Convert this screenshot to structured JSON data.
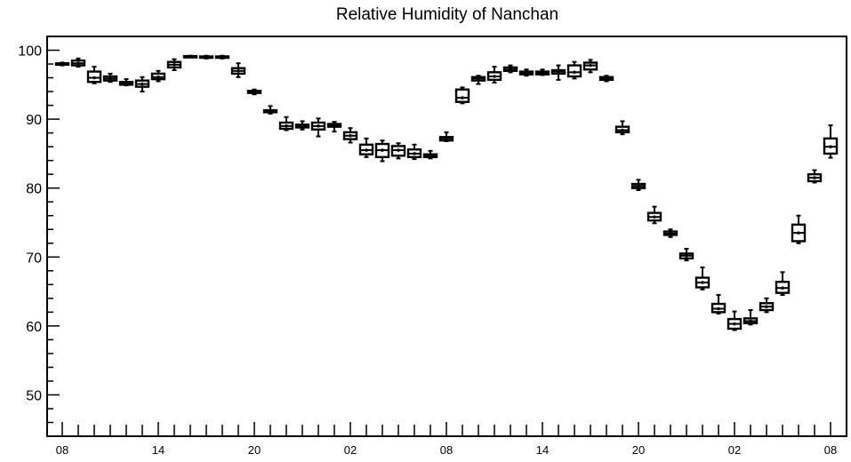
{
  "chart_data": {
    "type": "box",
    "title": "Relative Humidity of Nanchan",
    "xlabel": "",
    "ylabel": "",
    "ylim": [
      44,
      102
    ],
    "y_ticks": [
      50,
      60,
      70,
      80,
      90,
      100
    ],
    "x_ticks": [
      {
        "hour_index": 0,
        "label": "08"
      },
      {
        "hour_index": 6,
        "label": "14"
      },
      {
        "hour_index": 12,
        "label": "20"
      },
      {
        "hour_index": 18,
        "label": "02"
      },
      {
        "hour_index": 24,
        "label": "08"
      },
      {
        "hour_index": 30,
        "label": "14"
      },
      {
        "hour_index": 36,
        "label": "20"
      },
      {
        "hour_index": 42,
        "label": "02"
      },
      {
        "hour_index": 48,
        "label": "08"
      }
    ],
    "boxes": [
      {
        "hour_index": 0,
        "min": 97.8,
        "q1": 97.9,
        "median": 98.0,
        "q3": 98.1,
        "max": 98.2
      },
      {
        "hour_index": 1,
        "min": 97.6,
        "q1": 97.8,
        "median": 98.1,
        "q3": 98.5,
        "max": 98.8
      },
      {
        "hour_index": 2,
        "min": 95.2,
        "q1": 95.4,
        "median": 96.0,
        "q3": 96.9,
        "max": 97.6
      },
      {
        "hour_index": 3,
        "min": 95.4,
        "q1": 95.6,
        "median": 95.9,
        "q3": 96.2,
        "max": 96.6
      },
      {
        "hour_index": 4,
        "min": 94.9,
        "q1": 95.0,
        "median": 95.2,
        "q3": 95.4,
        "max": 95.8
      },
      {
        "hour_index": 5,
        "min": 94.0,
        "q1": 94.7,
        "median": 95.1,
        "q3": 95.6,
        "max": 96.1
      },
      {
        "hour_index": 6,
        "min": 95.5,
        "q1": 95.8,
        "median": 96.1,
        "q3": 96.6,
        "max": 97.0
      },
      {
        "hour_index": 7,
        "min": 97.1,
        "q1": 97.5,
        "median": 97.9,
        "q3": 98.3,
        "max": 98.7
      },
      {
        "hour_index": 8,
        "min": 99.0,
        "q1": 99.05,
        "median": 99.1,
        "q3": 99.15,
        "max": 99.2
      },
      {
        "hour_index": 9,
        "min": 98.8,
        "q1": 98.9,
        "median": 99.0,
        "q3": 99.1,
        "max": 99.2
      },
      {
        "hour_index": 10,
        "min": 98.8,
        "q1": 98.9,
        "median": 99.0,
        "q3": 99.1,
        "max": 99.2
      },
      {
        "hour_index": 11,
        "min": 96.1,
        "q1": 96.6,
        "median": 97.0,
        "q3": 97.4,
        "max": 98.1
      },
      {
        "hour_index": 12,
        "min": 93.6,
        "q1": 93.8,
        "median": 93.9,
        "q3": 94.1,
        "max": 94.3
      },
      {
        "hour_index": 13,
        "min": 90.8,
        "q1": 91.0,
        "median": 91.1,
        "q3": 91.3,
        "max": 91.9
      },
      {
        "hour_index": 14,
        "min": 88.4,
        "q1": 88.6,
        "median": 89.0,
        "q3": 89.5,
        "max": 90.3
      },
      {
        "hour_index": 15,
        "min": 88.5,
        "q1": 88.8,
        "median": 89.0,
        "q3": 89.2,
        "max": 89.7
      },
      {
        "hour_index": 16,
        "min": 87.5,
        "q1": 88.5,
        "median": 89.0,
        "q3": 89.5,
        "max": 90.1
      },
      {
        "hour_index": 17,
        "min": 88.2,
        "q1": 88.9,
        "median": 89.1,
        "q3": 89.3,
        "max": 89.6
      },
      {
        "hour_index": 18,
        "min": 86.6,
        "q1": 87.1,
        "median": 87.6,
        "q3": 88.1,
        "max": 88.7
      },
      {
        "hour_index": 19,
        "min": 84.5,
        "q1": 84.9,
        "median": 85.5,
        "q3": 86.3,
        "max": 87.2
      },
      {
        "hour_index": 20,
        "min": 83.9,
        "q1": 84.5,
        "median": 85.5,
        "q3": 86.4,
        "max": 86.9
      },
      {
        "hour_index": 21,
        "min": 84.3,
        "q1": 84.7,
        "median": 85.5,
        "q3": 86.1,
        "max": 86.5
      },
      {
        "hour_index": 22,
        "min": 84.2,
        "q1": 84.5,
        "median": 85.0,
        "q3": 85.6,
        "max": 86.3
      },
      {
        "hour_index": 23,
        "min": 84.3,
        "q1": 84.5,
        "median": 84.7,
        "q3": 84.9,
        "max": 85.4
      },
      {
        "hour_index": 24,
        "min": 86.8,
        "q1": 86.9,
        "median": 87.2,
        "q3": 87.4,
        "max": 88.1
      },
      {
        "hour_index": 25,
        "min": 92.3,
        "q1": 92.5,
        "median": 93.1,
        "q3": 94.3,
        "max": 94.6
      },
      {
        "hour_index": 26,
        "min": 95.1,
        "q1": 95.6,
        "median": 95.9,
        "q3": 96.1,
        "max": 96.3
      },
      {
        "hour_index": 27,
        "min": 95.3,
        "q1": 95.7,
        "median": 96.2,
        "q3": 96.8,
        "max": 97.6
      },
      {
        "hour_index": 28,
        "min": 96.8,
        "q1": 97.0,
        "median": 97.2,
        "q3": 97.5,
        "max": 97.8
      },
      {
        "hour_index": 29,
        "min": 96.3,
        "q1": 96.5,
        "median": 96.7,
        "q3": 96.9,
        "max": 97.2
      },
      {
        "hour_index": 30,
        "min": 96.4,
        "q1": 96.5,
        "median": 96.7,
        "q3": 96.9,
        "max": 97.2
      },
      {
        "hour_index": 31,
        "min": 95.7,
        "q1": 96.6,
        "median": 96.9,
        "q3": 97.1,
        "max": 97.8
      },
      {
        "hour_index": 32,
        "min": 95.9,
        "q1": 96.2,
        "median": 96.8,
        "q3": 97.8,
        "max": 98.3
      },
      {
        "hour_index": 33,
        "min": 96.8,
        "q1": 97.2,
        "median": 97.8,
        "q3": 98.2,
        "max": 98.6
      },
      {
        "hour_index": 34,
        "min": 95.5,
        "q1": 95.7,
        "median": 95.9,
        "q3": 96.1,
        "max": 96.3
      },
      {
        "hour_index": 35,
        "min": 87.8,
        "q1": 88.1,
        "median": 88.4,
        "q3": 88.9,
        "max": 89.7
      },
      {
        "hour_index": 36,
        "min": 79.7,
        "q1": 80.0,
        "median": 80.3,
        "q3": 80.6,
        "max": 81.2
      },
      {
        "hour_index": 37,
        "min": 74.9,
        "q1": 75.3,
        "median": 75.8,
        "q3": 76.4,
        "max": 77.3
      },
      {
        "hour_index": 38,
        "min": 72.9,
        "q1": 73.2,
        "median": 73.4,
        "q3": 73.7,
        "max": 74.0
      },
      {
        "hour_index": 39,
        "min": 69.5,
        "q1": 69.8,
        "median": 70.2,
        "q3": 70.5,
        "max": 71.2
      },
      {
        "hour_index": 40,
        "min": 65.3,
        "q1": 65.6,
        "median": 66.3,
        "q3": 67.0,
        "max": 68.5
      },
      {
        "hour_index": 41,
        "min": 61.8,
        "q1": 62.0,
        "median": 62.5,
        "q3": 63.2,
        "max": 64.5
      },
      {
        "hour_index": 42,
        "min": 59.4,
        "q1": 59.6,
        "median": 60.3,
        "q3": 61.0,
        "max": 62.1
      },
      {
        "hour_index": 43,
        "min": 60.2,
        "q1": 60.4,
        "median": 60.7,
        "q3": 61.1,
        "max": 62.3
      },
      {
        "hour_index": 44,
        "min": 62.0,
        "q1": 62.3,
        "median": 62.8,
        "q3": 63.3,
        "max": 64.0
      },
      {
        "hour_index": 45,
        "min": 64.5,
        "q1": 64.8,
        "median": 65.5,
        "q3": 66.4,
        "max": 67.8
      },
      {
        "hour_index": 46,
        "min": 72.0,
        "q1": 72.3,
        "median": 73.5,
        "q3": 74.7,
        "max": 76.0
      },
      {
        "hour_index": 47,
        "min": 80.8,
        "q1": 81.0,
        "median": 81.5,
        "q3": 82.0,
        "max": 82.6
      },
      {
        "hour_index": 48,
        "min": 84.4,
        "q1": 85.0,
        "median": 86.0,
        "q3": 87.2,
        "max": 89.1
      }
    ]
  }
}
